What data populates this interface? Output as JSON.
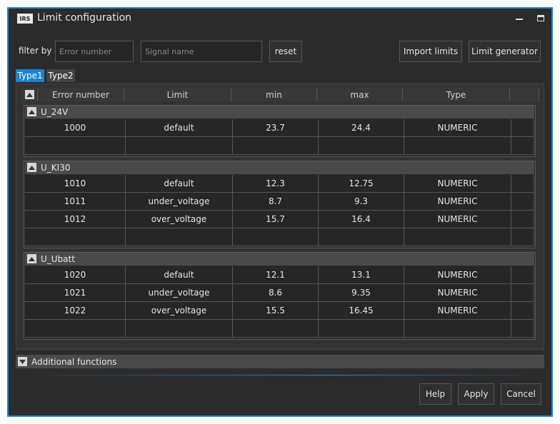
{
  "window": {
    "logo": "IRS",
    "title": "Limit configuration"
  },
  "toolbar": {
    "filter_label": "filter by",
    "error_placeholder": "Error number",
    "signal_placeholder": "Signal name",
    "reset": "reset",
    "import": "Import limits",
    "generator": "Limit generator"
  },
  "tabs": [
    "Type1",
    "Type2"
  ],
  "table": {
    "columns": [
      "Error number",
      "Limit",
      "min",
      "max",
      "Type"
    ],
    "groups": [
      {
        "name": "U_24V",
        "rows": [
          [
            1000,
            "default",
            23.7,
            24.4,
            "NUMERIC"
          ]
        ]
      },
      {
        "name": "U_KI30",
        "rows": [
          [
            1010,
            "default",
            12.3,
            12.75,
            "NUMERIC"
          ],
          [
            1011,
            "under_voltage",
            8.7,
            9.3,
            "NUMERIC"
          ],
          [
            1012,
            "over_voltage",
            15.7,
            16.4,
            "NUMERIC"
          ]
        ]
      },
      {
        "name": "U_Ubatt",
        "rows": [
          [
            1020,
            "default",
            12.1,
            13.1,
            "NUMERIC"
          ],
          [
            1021,
            "under_voltage",
            8.6,
            9.35,
            "NUMERIC"
          ],
          [
            1022,
            "over_voltage",
            15.5,
            16.45,
            "NUMERIC"
          ]
        ]
      }
    ]
  },
  "additional": "Additional functions",
  "buttons": [
    "Help",
    "Apply",
    "Cancel"
  ]
}
